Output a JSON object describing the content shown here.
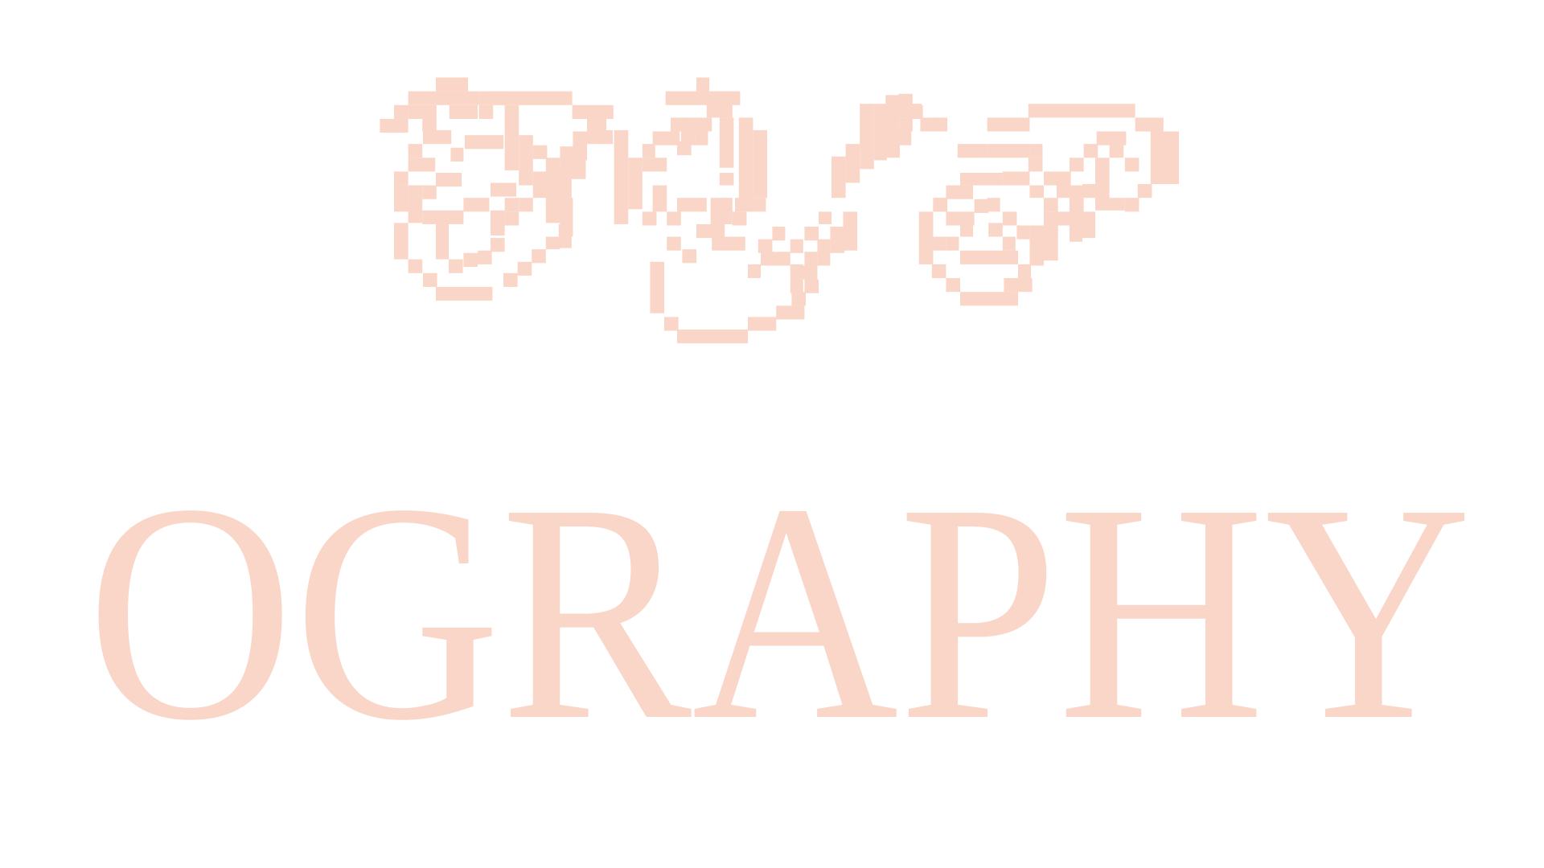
{
  "artwork": {
    "pixel_lettering": "Typo",
    "word": "OGRAPHY",
    "accent_color": "#f9d6c8",
    "background_color": "#ffffff"
  }
}
